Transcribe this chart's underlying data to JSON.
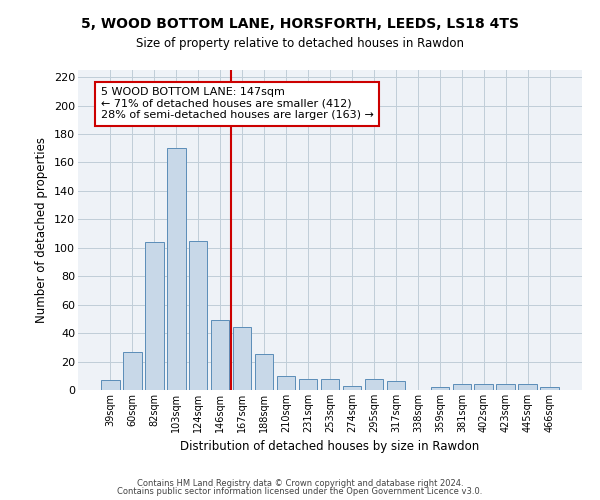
{
  "title1": "5, WOOD BOTTOM LANE, HORSFORTH, LEEDS, LS18 4TS",
  "title2": "Size of property relative to detached houses in Rawdon",
  "xlabel": "Distribution of detached houses by size in Rawdon",
  "ylabel": "Number of detached properties",
  "categories": [
    "39sqm",
    "60sqm",
    "82sqm",
    "103sqm",
    "124sqm",
    "146sqm",
    "167sqm",
    "188sqm",
    "210sqm",
    "231sqm",
    "253sqm",
    "274sqm",
    "295sqm",
    "317sqm",
    "338sqm",
    "359sqm",
    "381sqm",
    "402sqm",
    "423sqm",
    "445sqm",
    "466sqm"
  ],
  "values": [
    7,
    27,
    104,
    170,
    105,
    49,
    44,
    25,
    10,
    8,
    8,
    3,
    8,
    6,
    0,
    2,
    4,
    4,
    4,
    4,
    2
  ],
  "bar_color": "#c8d8e8",
  "bar_edge_color": "#5b8db8",
  "vline_x": 5.5,
  "vline_color": "#cc0000",
  "annotation_line1": "5 WOOD BOTTOM LANE: 147sqm",
  "annotation_line2": "← 71% of detached houses are smaller (412)",
  "annotation_line3": "28% of semi-detached houses are larger (163) →",
  "annotation_box_color": "#ffffff",
  "annotation_box_edge": "#cc0000",
  "ylim": [
    0,
    225
  ],
  "yticks": [
    0,
    20,
    40,
    60,
    80,
    100,
    120,
    140,
    160,
    180,
    200,
    220
  ],
  "footer1": "Contains HM Land Registry data © Crown copyright and database right 2024.",
  "footer2": "Contains public sector information licensed under the Open Government Licence v3.0.",
  "bg_color": "#eef2f7",
  "grid_color": "#c0cdd8"
}
